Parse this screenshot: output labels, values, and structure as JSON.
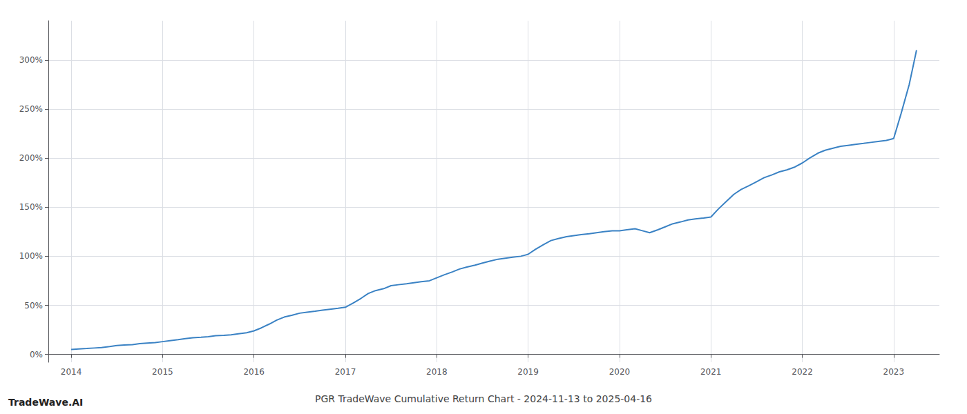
{
  "chart_data": {
    "type": "line",
    "title": "PGR TradeWave Cumulative Return Chart - 2024-11-13 to 2025-04-16",
    "annotations": [
      "TradeWave.AI"
    ],
    "color": "#3a82c4",
    "x": [
      2014.0,
      2014.08,
      2014.17,
      2014.25,
      2014.33,
      2014.42,
      2014.5,
      2014.58,
      2014.67,
      2014.75,
      2014.83,
      2014.92,
      2015.0,
      2015.08,
      2015.17,
      2015.25,
      2015.33,
      2015.42,
      2015.5,
      2015.58,
      2015.67,
      2015.75,
      2015.83,
      2015.92,
      2016.0,
      2016.08,
      2016.17,
      2016.25,
      2016.33,
      2016.42,
      2016.5,
      2016.58,
      2016.67,
      2016.75,
      2016.83,
      2016.92,
      2017.0,
      2017.08,
      2017.17,
      2017.25,
      2017.33,
      2017.42,
      2017.5,
      2017.58,
      2017.67,
      2017.75,
      2017.83,
      2017.92,
      2018.0,
      2018.08,
      2018.17,
      2018.25,
      2018.33,
      2018.42,
      2018.5,
      2018.58,
      2018.67,
      2018.75,
      2018.83,
      2018.92,
      2019.0,
      2019.08,
      2019.17,
      2019.25,
      2019.33,
      2019.42,
      2019.5,
      2019.58,
      2019.67,
      2019.75,
      2019.83,
      2019.92,
      2020.0,
      2020.08,
      2020.17,
      2020.25,
      2020.33,
      2020.42,
      2020.5,
      2020.58,
      2020.67,
      2020.75,
      2020.83,
      2020.92,
      2021.0,
      2021.08,
      2021.17,
      2021.25,
      2021.33,
      2021.42,
      2021.5,
      2021.58,
      2021.67,
      2021.75,
      2021.83,
      2021.92,
      2022.0,
      2022.08,
      2022.17,
      2022.25,
      2022.33,
      2022.42,
      2022.5,
      2022.58,
      2022.67,
      2022.75,
      2022.83,
      2022.92,
      2023.0,
      2023.08,
      2023.17,
      2023.25
    ],
    "values": [
      5,
      5.5,
      6,
      6.5,
      7,
      8,
      9,
      9.5,
      10,
      11,
      11.5,
      12,
      13,
      14,
      15,
      16,
      17,
      17.5,
      18,
      19,
      19.5,
      20,
      21,
      22,
      24,
      27,
      31,
      35,
      38,
      40,
      42,
      43,
      44,
      45,
      46,
      47,
      48,
      52,
      57,
      62,
      65,
      67,
      70,
      71,
      72,
      73,
      74,
      75,
      78,
      81,
      84,
      87,
      89,
      91,
      93,
      95,
      97,
      98,
      99,
      100,
      102,
      107,
      112,
      116,
      118,
      120,
      121,
      122,
      123,
      124,
      125,
      126,
      126,
      127,
      128,
      126,
      124,
      127,
      130,
      133,
      135,
      137,
      138,
      139,
      140,
      148,
      156,
      163,
      168,
      172,
      176,
      180,
      183,
      186,
      188,
      191,
      195,
      200,
      205,
      208,
      210,
      212,
      213,
      214,
      215,
      216,
      217,
      218,
      220,
      245,
      275,
      310
    ],
    "xlim": [
      2013.75,
      2023.5
    ],
    "ylim": [
      -8,
      340
    ],
    "xticks": [
      2014,
      2015,
      2016,
      2017,
      2018,
      2019,
      2020,
      2021,
      2022,
      2023
    ],
    "yticks": [
      {
        "value": 0,
        "label": "0%"
      },
      {
        "value": 50,
        "label": "50%"
      },
      {
        "value": 100,
        "label": "100%"
      },
      {
        "value": 150,
        "label": "150%"
      },
      {
        "value": 200,
        "label": "200%"
      },
      {
        "value": 250,
        "label": "250%"
      },
      {
        "value": 300,
        "label": "300%"
      }
    ],
    "grid": true
  }
}
